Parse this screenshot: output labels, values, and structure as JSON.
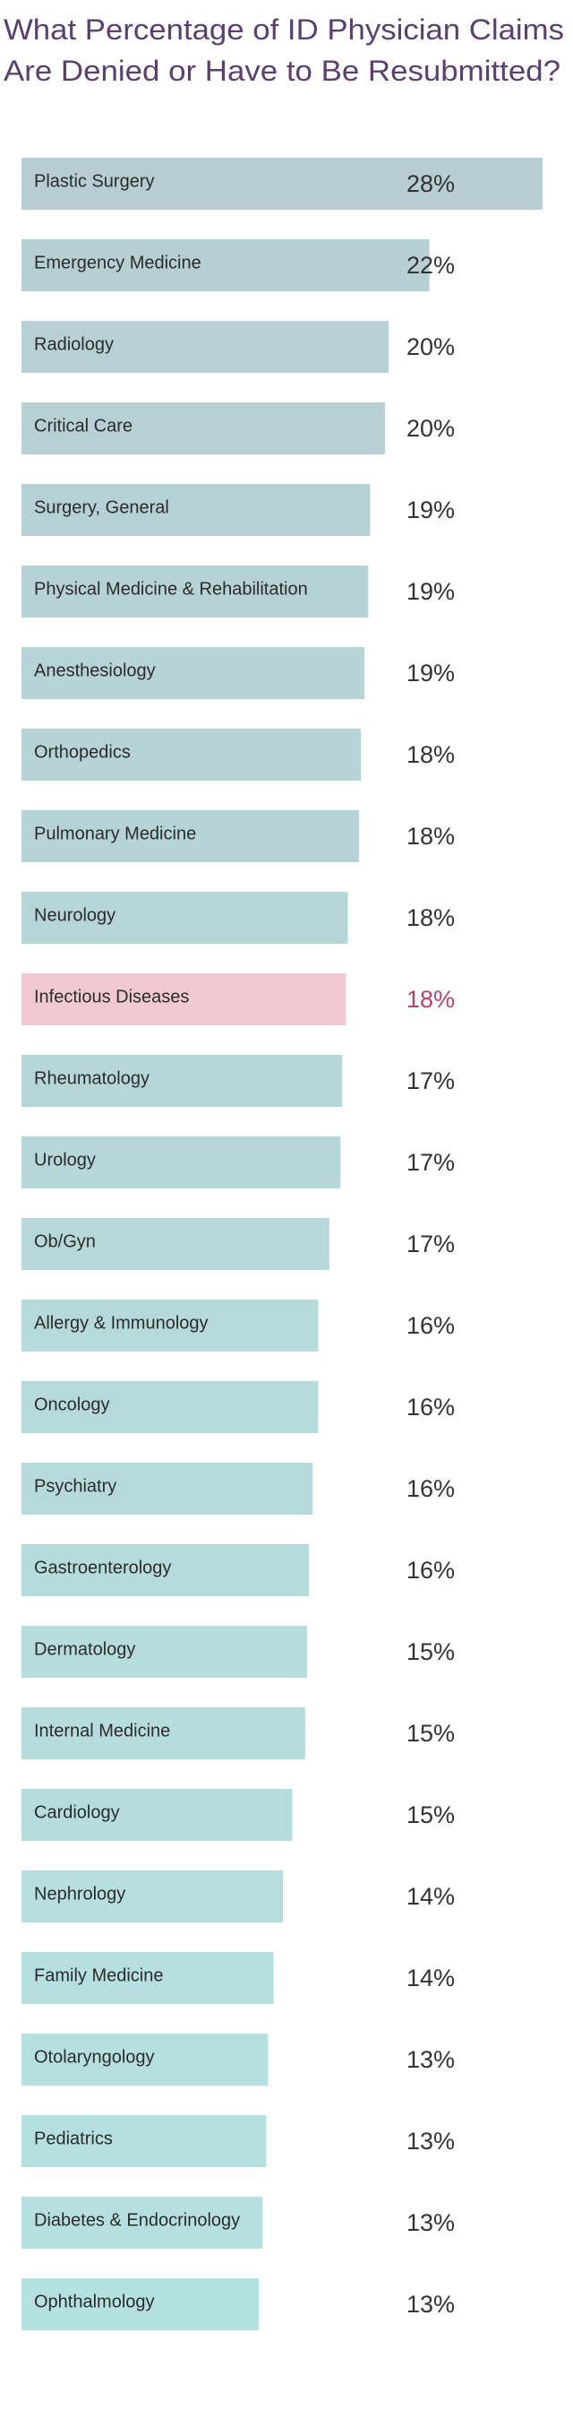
{
  "chart_data": {
    "type": "bar",
    "orientation": "horizontal",
    "title_lines": [
      "What Percentage of ID Physician Claims",
      "Are Denied or Have to Be Resubmitted?"
    ],
    "categories": [
      "Plastic Surgery",
      "Emergency Medicine",
      "Radiology",
      "Critical Care",
      "Surgery, General",
      "Physical Medicine & Rehabilitation",
      "Anesthesiology",
      "Orthopedics",
      "Pulmonary Medicine",
      "Neurology",
      "Infectious Diseases",
      "Rheumatology",
      "Urology",
      "Ob/Gyn",
      "Allergy & Immunology",
      "Oncology",
      "Psychiatry",
      "Gastroenterology",
      "Dermatology",
      "Internal Medicine",
      "Cardiology",
      "Nephrology",
      "Family Medicine",
      "Otolaryngology",
      "Pediatrics",
      "Diabetes & Endocrinology",
      "Ophthalmology"
    ],
    "values": [
      28.1,
      22.0,
      19.8,
      19.6,
      18.8,
      18.7,
      18.5,
      18.3,
      18.2,
      17.6,
      17.5,
      17.3,
      17.2,
      16.6,
      16.0,
      16.0,
      15.7,
      15.5,
      15.4,
      15.3,
      14.6,
      14.1,
      13.6,
      13.3,
      13.2,
      13.0,
      12.8
    ],
    "value_labels": [
      "28%",
      "22%",
      "20%",
      "20%",
      "19%",
      "19%",
      "19%",
      "18%",
      "18%",
      "18%",
      "18%",
      "17%",
      "17%",
      "17%",
      "16%",
      "16%",
      "16%",
      "16%",
      "15%",
      "15%",
      "15%",
      "14%",
      "14%",
      "13%",
      "13%",
      "13%",
      "13%"
    ],
    "colors": [
      "#b6cdd2",
      "#b6cfd3",
      "#b6d0d4",
      "#b6d0d4",
      "#b6d1d5",
      "#b6d2d5",
      "#b6d3d6",
      "#b6d3d6",
      "#b6d4d7",
      "#b6d5d7",
      "#f1c9d3",
      "#b6d6d8",
      "#b6d7d9",
      "#b6d8d9",
      "#b6d9da",
      "#b6d9da",
      "#b6dadb",
      "#b6dbdb",
      "#b6dcdc",
      "#b6dcdc",
      "#b6dddd",
      "#b6dede",
      "#b6dfdf",
      "#b6dfdf",
      "#b6e0e0",
      "#b6e0e0",
      "#b6e1e1"
    ],
    "highlight_label_color": "#b0456c",
    "highlight_index": 10
  }
}
